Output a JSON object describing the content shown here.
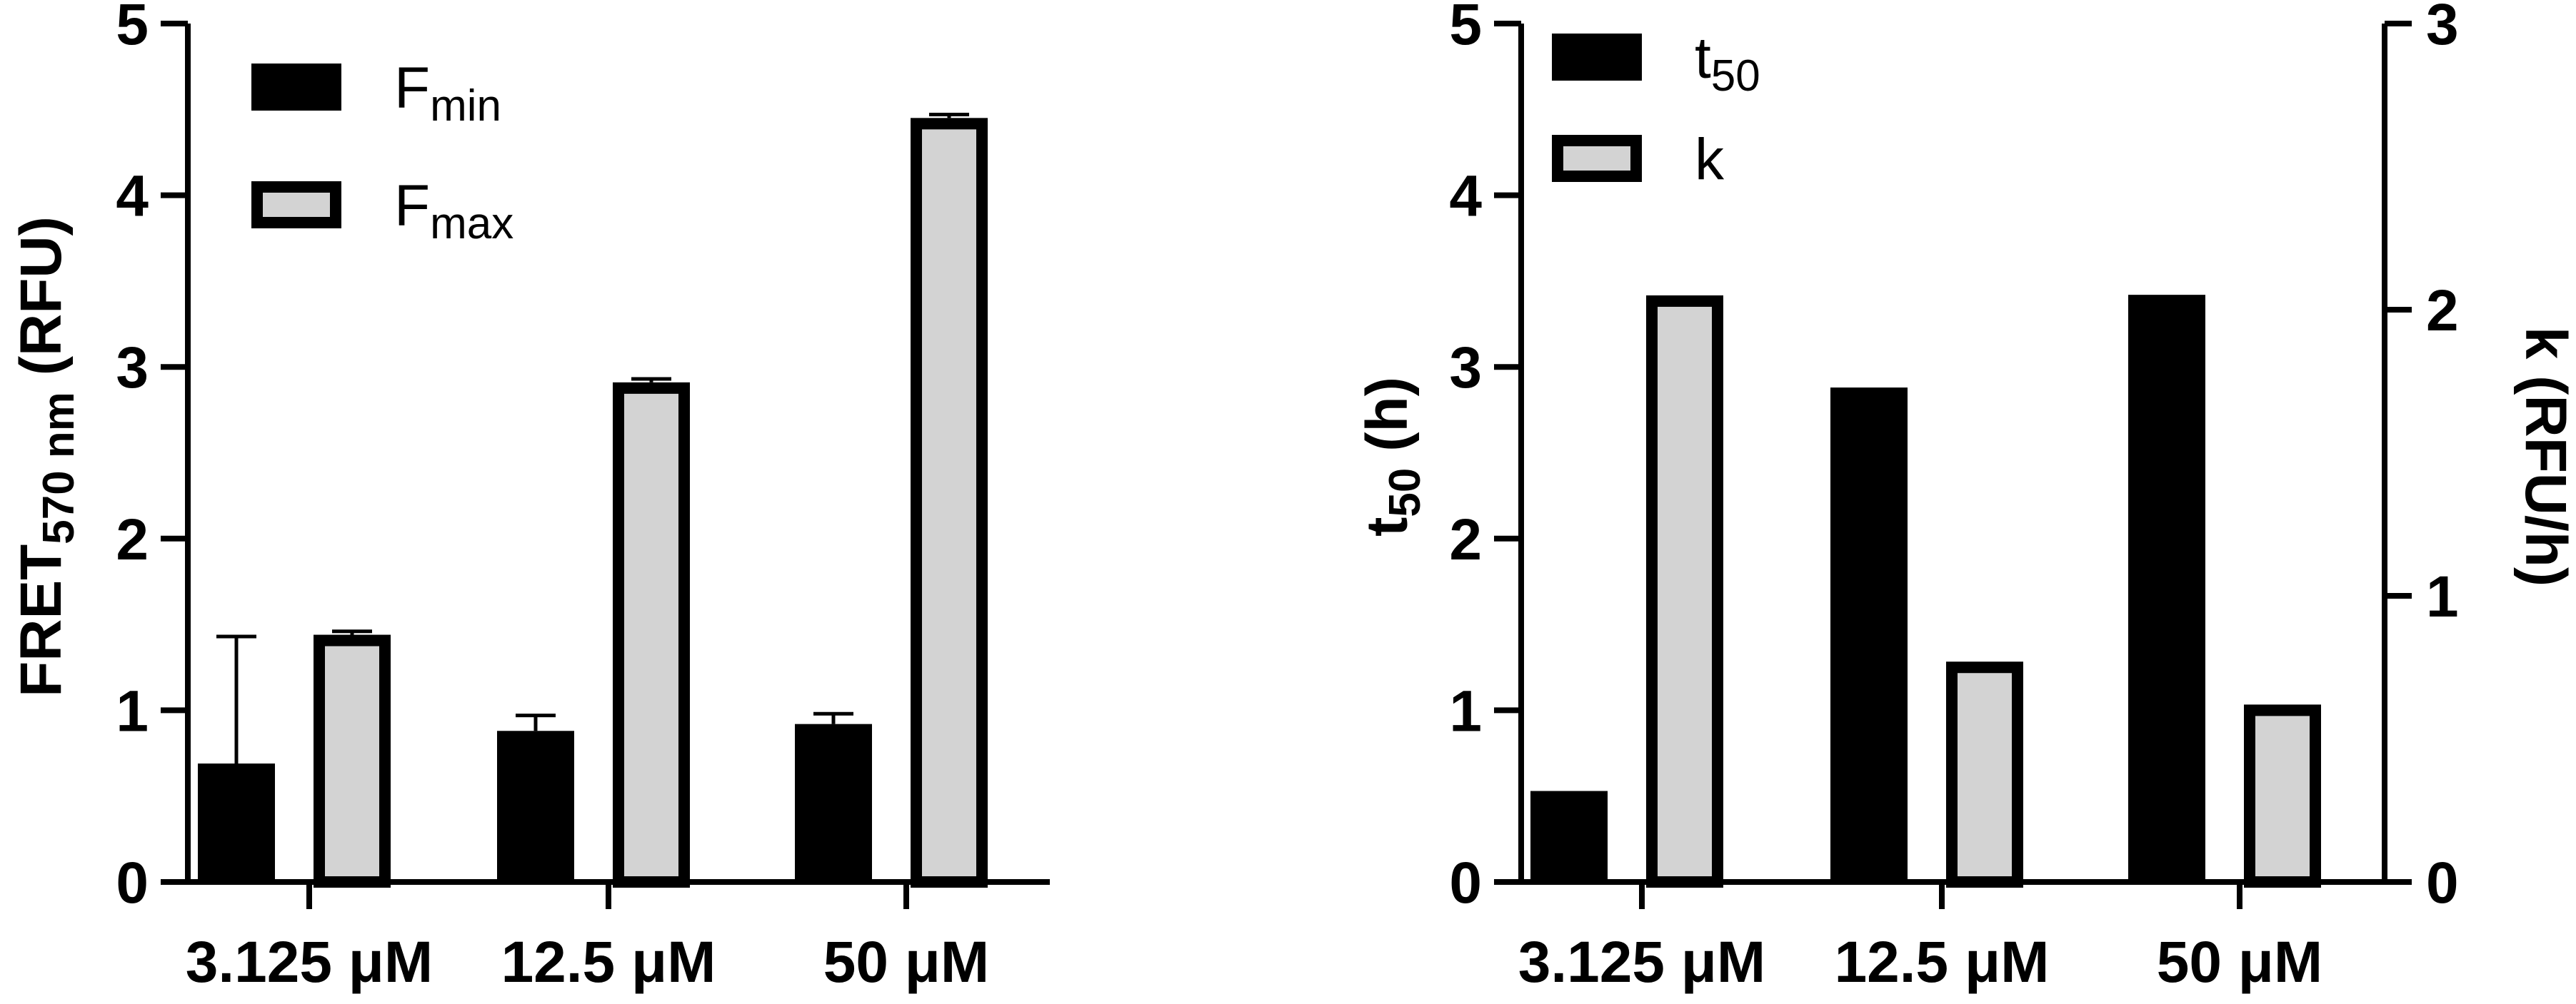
{
  "chart_data": [
    {
      "type": "bar",
      "categories": [
        "3.125 μM",
        "12.5 μM",
        "50 μM"
      ],
      "ylabel": "FRET",
      "ylabel_sub": "570 nm",
      "ylabel_unit": "(RFU)",
      "ylim": [
        0,
        5
      ],
      "yticks": [
        "0",
        "1",
        "2",
        "3",
        "4",
        "5"
      ],
      "legend_position": "top-left",
      "series": [
        {
          "name": "F",
          "name_sub": "min",
          "values": [
            0.69,
            0.88,
            0.92
          ],
          "errors": [
            0.74,
            0.09,
            0.06
          ],
          "color": "#000000",
          "axis": "left"
        },
        {
          "name": "F",
          "name_sub": "max",
          "values": [
            1.44,
            2.91,
            4.45
          ],
          "errors": [
            0.02,
            0.02,
            0.02
          ],
          "color": "#d3d3d3",
          "axis": "left"
        }
      ]
    },
    {
      "type": "bar",
      "categories": [
        "3.125 μM",
        "12.5 μM",
        "50 μM"
      ],
      "ylabel": "t",
      "ylabel_sub": "50",
      "ylabel_unit": "(h)",
      "ylim": [
        0,
        5
      ],
      "yticks": [
        "0",
        "1",
        "2",
        "3",
        "4",
        "5"
      ],
      "y2label": "k (RFU/h)",
      "y2lim": [
        0,
        3
      ],
      "y2ticks": [
        "0",
        "1",
        "2",
        "3"
      ],
      "legend_position": "top-left",
      "series": [
        {
          "name": "t",
          "name_sub": "50",
          "values": [
            0.53,
            2.88,
            3.42
          ],
          "color": "#000000",
          "axis": "left"
        },
        {
          "name": "k",
          "name_sub": "",
          "values": [
            2.05,
            0.77,
            0.62
          ],
          "color": "#d3d3d3",
          "axis": "right"
        }
      ]
    }
  ]
}
